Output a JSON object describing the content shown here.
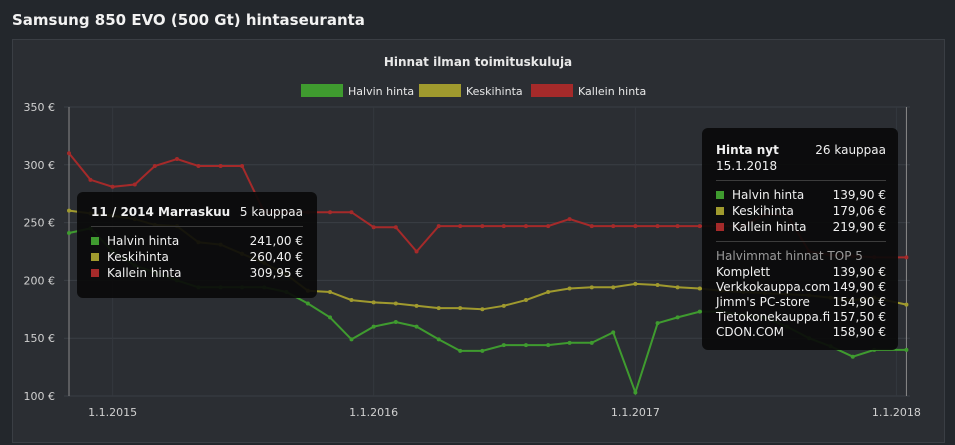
{
  "page": {
    "title": "Samsung 850 EVO (500 Gt) hintaseuranta"
  },
  "chart_data": {
    "type": "line",
    "title": "Hinnat ilman toimituskuluja",
    "y_unit": "€",
    "ylim": [
      100,
      350
    ],
    "y_ticks": [
      100,
      150,
      200,
      250,
      300,
      350
    ],
    "y_tick_labels": [
      "100 €",
      "150 €",
      "200 €",
      "250 €",
      "300 €",
      "350 €"
    ],
    "xlim": [
      "2014-10-25",
      "2018-01-20"
    ],
    "x_ticks": [
      "2015-01-01",
      "2016-01-01",
      "2017-01-01",
      "2018-01-01"
    ],
    "x_tick_labels": [
      "1.1.2015",
      "1.1.2016",
      "1.1.2017",
      "1.1.2018"
    ],
    "grid": true,
    "legend": "top-center",
    "series": [
      {
        "name": "Kallein hinta",
        "color": "#a52a2a",
        "points": [
          [
            "2014-11-01",
            309.95
          ],
          [
            "2014-12-01",
            287
          ],
          [
            "2015-01-01",
            281
          ],
          [
            "2015-02-01",
            283
          ],
          [
            "2015-03-01",
            299
          ],
          [
            "2015-04-01",
            305
          ],
          [
            "2015-05-01",
            299
          ],
          [
            "2015-06-01",
            299
          ],
          [
            "2015-07-01",
            299
          ],
          [
            "2015-08-01",
            259
          ],
          [
            "2015-09-01",
            259
          ],
          [
            "2015-10-01",
            259
          ],
          [
            "2015-11-01",
            259
          ],
          [
            "2015-12-01",
            259
          ],
          [
            "2016-01-01",
            246
          ],
          [
            "2016-02-01",
            246
          ],
          [
            "2016-03-01",
            225
          ],
          [
            "2016-04-01",
            247
          ],
          [
            "2016-05-01",
            247
          ],
          [
            "2016-06-01",
            247
          ],
          [
            "2016-07-01",
            247
          ],
          [
            "2016-08-01",
            247
          ],
          [
            "2016-09-01",
            247
          ],
          [
            "2016-10-01",
            253
          ],
          [
            "2016-11-01",
            247
          ],
          [
            "2016-12-01",
            247
          ],
          [
            "2017-01-01",
            247
          ],
          [
            "2017-02-01",
            247
          ],
          [
            "2017-03-01",
            247
          ],
          [
            "2017-04-01",
            247
          ],
          [
            "2017-05-01",
            247
          ],
          [
            "2017-06-01",
            247
          ],
          [
            "2017-07-01",
            257
          ],
          [
            "2017-08-01",
            257
          ],
          [
            "2017-09-01",
            225
          ],
          [
            "2017-10-01",
            222
          ],
          [
            "2017-11-01",
            221
          ],
          [
            "2017-12-01",
            220
          ],
          [
            "2018-01-15",
            219.9
          ]
        ]
      },
      {
        "name": "Keskihinta",
        "color": "#a09a2e",
        "points": [
          [
            "2014-11-01",
            260.4
          ],
          [
            "2014-12-01",
            258
          ],
          [
            "2015-01-01",
            256
          ],
          [
            "2015-02-01",
            253
          ],
          [
            "2015-03-01",
            248
          ],
          [
            "2015-04-01",
            247
          ],
          [
            "2015-05-01",
            233
          ],
          [
            "2015-06-01",
            231
          ],
          [
            "2015-07-01",
            223
          ],
          [
            "2015-08-01",
            215
          ],
          [
            "2015-09-01",
            205
          ],
          [
            "2015-10-01",
            191
          ],
          [
            "2015-11-01",
            190
          ],
          [
            "2015-12-01",
            183
          ],
          [
            "2016-01-01",
            181
          ],
          [
            "2016-02-01",
            180
          ],
          [
            "2016-03-01",
            178
          ],
          [
            "2016-04-01",
            176
          ],
          [
            "2016-05-01",
            176
          ],
          [
            "2016-06-01",
            175
          ],
          [
            "2016-07-01",
            178
          ],
          [
            "2016-08-01",
            183
          ],
          [
            "2016-09-01",
            190
          ],
          [
            "2016-10-01",
            193
          ],
          [
            "2016-11-01",
            194
          ],
          [
            "2016-12-01",
            194
          ],
          [
            "2017-01-01",
            197
          ],
          [
            "2017-02-01",
            196
          ],
          [
            "2017-03-01",
            194
          ],
          [
            "2017-04-01",
            193
          ],
          [
            "2017-05-01",
            191
          ],
          [
            "2017-06-01",
            190
          ],
          [
            "2017-07-01",
            189
          ],
          [
            "2017-08-01",
            188
          ],
          [
            "2017-09-01",
            187
          ],
          [
            "2017-10-01",
            185
          ],
          [
            "2017-11-01",
            183
          ],
          [
            "2017-12-01",
            185
          ],
          [
            "2018-01-15",
            179.06
          ]
        ]
      },
      {
        "name": "Halvin hinta",
        "color": "#3f9b2f",
        "points": [
          [
            "2014-11-01",
            241.0
          ],
          [
            "2014-12-01",
            245
          ],
          [
            "2015-01-01",
            225
          ],
          [
            "2015-02-01",
            213
          ],
          [
            "2015-03-01",
            207
          ],
          [
            "2015-04-01",
            200
          ],
          [
            "2015-05-01",
            194
          ],
          [
            "2015-06-01",
            194
          ],
          [
            "2015-07-01",
            194
          ],
          [
            "2015-08-01",
            194
          ],
          [
            "2015-09-01",
            190
          ],
          [
            "2015-10-01",
            180
          ],
          [
            "2015-11-01",
            168
          ],
          [
            "2015-12-01",
            149
          ],
          [
            "2016-01-01",
            160
          ],
          [
            "2016-02-01",
            164
          ],
          [
            "2016-03-01",
            160
          ],
          [
            "2016-04-01",
            149
          ],
          [
            "2016-05-01",
            139
          ],
          [
            "2016-06-01",
            139
          ],
          [
            "2016-07-01",
            144
          ],
          [
            "2016-08-01",
            144
          ],
          [
            "2016-09-01",
            144
          ],
          [
            "2016-10-01",
            146
          ],
          [
            "2016-11-01",
            146
          ],
          [
            "2016-12-01",
            155
          ],
          [
            "2017-01-01",
            103
          ],
          [
            "2017-02-01",
            163
          ],
          [
            "2017-03-01",
            168
          ],
          [
            "2017-04-01",
            173
          ],
          [
            "2017-05-01",
            173
          ],
          [
            "2017-06-01",
            170
          ],
          [
            "2017-07-01",
            168
          ],
          [
            "2017-08-01",
            160
          ],
          [
            "2017-09-01",
            150
          ],
          [
            "2017-10-01",
            143
          ],
          [
            "2017-11-01",
            134
          ],
          [
            "2017-12-01",
            139.9
          ],
          [
            "2018-01-15",
            139.9
          ]
        ]
      }
    ]
  },
  "legend": [
    {
      "label": "Halvin hinta",
      "color": "#3f9b2f"
    },
    {
      "label": "Keskihinta",
      "color": "#a09a2e"
    },
    {
      "label": "Kallein hinta",
      "color": "#a52a2a"
    }
  ],
  "tooltip_left": {
    "date": "11 / 2014 Marraskuu",
    "stores": "5 kauppaa",
    "rows": [
      {
        "label": "Halvin hinta",
        "value": "241,00 €",
        "color": "#3f9b2f"
      },
      {
        "label": "Keskihinta",
        "value": "260,40 €",
        "color": "#a09a2e"
      },
      {
        "label": "Kallein hinta",
        "value": "309,95 €",
        "color": "#a52a2a"
      }
    ]
  },
  "tooltip_right": {
    "heading": "Hinta nyt",
    "stores": "26 kauppaa",
    "date": "15.1.2018",
    "rows": [
      {
        "label": "Halvin hinta",
        "value": "139,90 €",
        "color": "#3f9b2f"
      },
      {
        "label": "Keskihinta",
        "value": "179,06 €",
        "color": "#a09a2e"
      },
      {
        "label": "Kallein hinta",
        "value": "219,90 €",
        "color": "#a52a2a"
      }
    ],
    "top5_title": "Halvimmat hinnat TOP 5",
    "top5": [
      {
        "store": "Komplett",
        "price": "139,90 €"
      },
      {
        "store": "Verkkokauppa.com",
        "price": "149,90 €"
      },
      {
        "store": "Jimm's PC-store",
        "price": "154,90 €"
      },
      {
        "store": "Tietokonekauppa.fi",
        "price": "157,50 €"
      },
      {
        "store": "CDON.COM",
        "price": "158,90 €"
      }
    ]
  }
}
